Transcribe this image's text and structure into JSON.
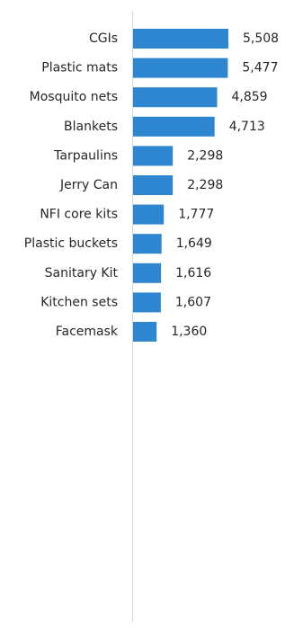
{
  "chart_data": {
    "type": "bar",
    "orientation": "horizontal",
    "categories": [
      "CGIs",
      "Plastic mats",
      "Mosquito nets",
      "Blankets",
      "Tarpaulins",
      "Jerry Can",
      "NFI core kits",
      "Plastic buckets",
      "Sanitary Kit",
      "Kitchen sets",
      "Facemask"
    ],
    "values": [
      5508,
      5477,
      4859,
      4713,
      2298,
      2298,
      1777,
      1649,
      1616,
      1607,
      1360
    ],
    "value_labels": [
      "5,508",
      "5,477",
      "4,859",
      "4,713",
      "2,298",
      "2,298",
      "1,777",
      "1,649",
      "1,616",
      "1,607",
      "1,360"
    ],
    "xlim": [
      0,
      5508
    ],
    "bar_color": "#2E86D0",
    "axis_color": "#D9D9D9",
    "text_color": "#262626",
    "grid": false,
    "legend": "none"
  }
}
